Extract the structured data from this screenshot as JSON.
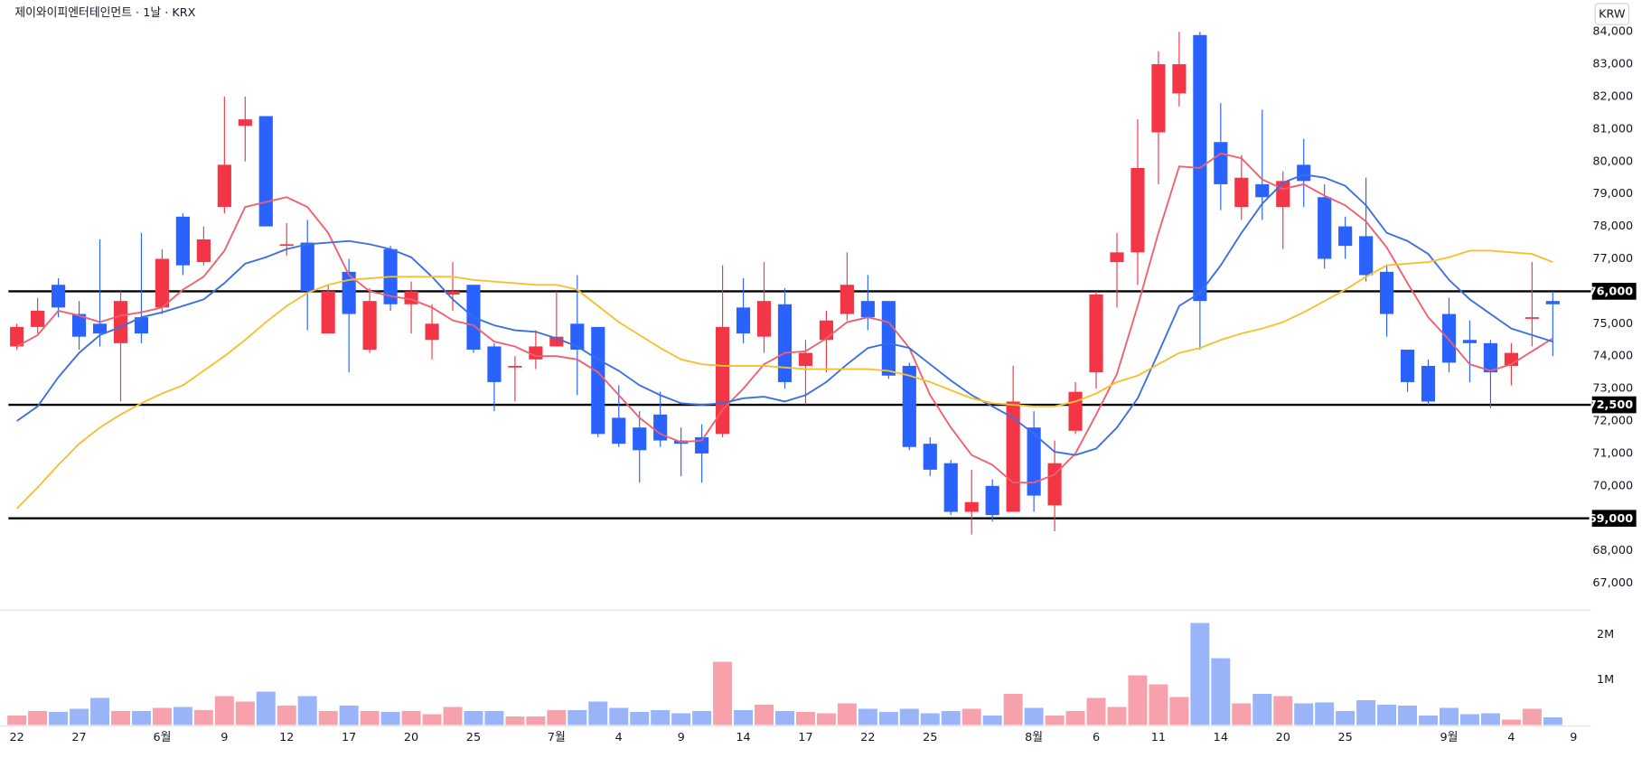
{
  "chart_data": {
    "type": "candlestick",
    "title": "제이와이피엔터테인먼트 · 1날 · KRX",
    "currency": "KRW",
    "up_color": "#f23645",
    "down_color": "#2962ff",
    "categories": [
      "22",
      null,
      null,
      "27",
      null,
      null,
      null,
      "6월",
      null,
      null,
      "9",
      null,
      null,
      "12",
      null,
      null,
      "17",
      null,
      null,
      "20",
      null,
      null,
      "25",
      null,
      null,
      null,
      "7월",
      null,
      null,
      "4",
      null,
      null,
      "9",
      null,
      null,
      "14",
      null,
      null,
      "17",
      null,
      null,
      "22",
      null,
      null,
      "25",
      null,
      null,
      null,
      null,
      "8월",
      null,
      null,
      "6",
      null,
      null,
      "11",
      null,
      null,
      "14",
      null,
      null,
      "20",
      null,
      null,
      "25",
      null,
      null,
      null,
      null,
      "9월",
      null,
      null,
      "4",
      null,
      null,
      "9"
    ],
    "open": [
      74300,
      74900,
      76200,
      75300,
      75000,
      74400,
      75200,
      75500,
      78300,
      76900,
      78600,
      81100,
      81400,
      77400,
      77500,
      74700,
      76600,
      74200,
      77300,
      75600,
      74500,
      75900,
      76200,
      74300,
      73650,
      73900,
      74300,
      75000,
      74900,
      72100,
      71800,
      72200,
      71400,
      71500,
      71600,
      75500,
      74600,
      75600,
      73700,
      74500,
      75300,
      75700,
      75700,
      73700,
      71300,
      70700,
      69200,
      70000,
      69200,
      71800,
      69400,
      71700,
      73500,
      76900,
      77200,
      80900,
      82100,
      83900,
      80600,
      78600,
      79300,
      78600,
      79900,
      78900,
      78000,
      77700,
      76600,
      74200,
      73700,
      75300,
      74500,
      74400,
      73700,
      75150,
      75700,
      null
    ],
    "high": [
      75000,
      75800,
      76400,
      75700,
      77600,
      76000,
      77800,
      77300,
      78400,
      78000,
      82000,
      82000,
      81400,
      78100,
      78200,
      76200,
      77000,
      76100,
      77400,
      76300,
      75600,
      76900,
      76200,
      74400,
      74000,
      74800,
      76000,
      76500,
      74900,
      73100,
      72300,
      72900,
      71800,
      71900,
      76800,
      76400,
      76900,
      76100,
      74500,
      75400,
      77200,
      76500,
      75700,
      73800,
      71500,
      70800,
      70500,
      70200,
      73700,
      72300,
      71400,
      73200,
      76000,
      77800,
      81300,
      83400,
      84000,
      84000,
      81800,
      80200,
      81600,
      79700,
      80700,
      79300,
      78300,
      79500,
      76800,
      74200,
      73900,
      75800,
      75100,
      74500,
      74400,
      76900,
      76000,
      null
    ],
    "low": [
      74200,
      74700,
      75200,
      74200,
      74300,
      72600,
      74400,
      75300,
      76500,
      76800,
      78400,
      80000,
      78000,
      77100,
      74800,
      74700,
      73500,
      74100,
      75400,
      74700,
      73900,
      75400,
      74100,
      72300,
      72600,
      73600,
      74300,
      72800,
      71500,
      71200,
      70100,
      71200,
      70300,
      70100,
      71500,
      74400,
      74100,
      73000,
      72500,
      73500,
      75100,
      74800,
      73300,
      71100,
      70300,
      69100,
      68500,
      68900,
      69200,
      69200,
      68600,
      71600,
      73000,
      75500,
      76200,
      79300,
      81700,
      74200,
      78500,
      78200,
      78200,
      77300,
      78600,
      76700,
      77000,
      76300,
      74600,
      72900,
      72500,
      73500,
      73200,
      72400,
      73100,
      74300,
      74000,
      null
    ],
    "close": [
      74900,
      75400,
      75500,
      74600,
      74700,
      75700,
      74700,
      77000,
      76800,
      77600,
      79900,
      81300,
      78000,
      77450,
      76000,
      76000,
      75300,
      75700,
      75600,
      76000,
      75000,
      76000,
      74200,
      73200,
      73700,
      74300,
      74600,
      74200,
      71600,
      71300,
      71100,
      71400,
      71300,
      71000,
      74900,
      74700,
      75700,
      73200,
      74100,
      75100,
      76200,
      75200,
      73400,
      71200,
      70500,
      69200,
      69500,
      69100,
      72600,
      69700,
      70700,
      72900,
      75900,
      77200,
      79800,
      83000,
      83000,
      75700,
      79300,
      79500,
      78900,
      79400,
      79400,
      77000,
      77400,
      76500,
      75300,
      73200,
      72600,
      73800,
      74400,
      73500,
      74100,
      75200,
      75600,
      null
    ],
    "lines": [
      {
        "color": "#f0606d",
        "values": [
          74300,
          74650,
          75400,
          75250,
          75050,
          75250,
          75350,
          75500,
          76050,
          76450,
          77250,
          78600,
          78750,
          78900,
          78600,
          77800,
          76500,
          76000,
          75850,
          75750,
          75500,
          75100,
          74950,
          74450,
          74300,
          74000,
          74000,
          73900,
          73500,
          72800,
          72100,
          71600,
          71350,
          71400,
          72350,
          73000,
          73750,
          74100,
          74150,
          74550,
          75050,
          75200,
          75050,
          74250,
          72800,
          71800,
          70950,
          70650,
          70100,
          70100,
          70350,
          71000,
          72200,
          73450,
          75550,
          77800,
          79850,
          79800,
          80250,
          80100,
          79450,
          79150,
          79300,
          78950,
          78650,
          78150,
          77350,
          76250,
          75200,
          74500,
          73750,
          73550,
          73750,
          74150,
          74550,
          null
        ]
      },
      {
        "color": "#3b6fe0",
        "values": [
          72000,
          72450,
          73350,
          74100,
          74650,
          74900,
          75200,
          75350,
          75550,
          75750,
          76250,
          76850,
          77050,
          77300,
          77450,
          77500,
          77550,
          77450,
          77300,
          77050,
          76450,
          75750,
          75200,
          74950,
          74800,
          74750,
          74550,
          74300,
          73900,
          73550,
          73100,
          72800,
          72550,
          72500,
          72550,
          72700,
          72750,
          72600,
          72800,
          73200,
          73750,
          74250,
          74400,
          74250,
          73750,
          73250,
          72800,
          72450,
          72100,
          71600,
          71050,
          70950,
          71150,
          71800,
          72700,
          74100,
          75550,
          75950,
          76800,
          77800,
          78700,
          79350,
          79600,
          79500,
          79250,
          78650,
          77800,
          77550,
          77150,
          76350,
          75750,
          75300,
          74850,
          74650,
          74450,
          null
        ]
      },
      {
        "color": "#f5c030",
        "values": [
          69300,
          69950,
          70650,
          71300,
          71800,
          72200,
          72550,
          72850,
          73100,
          73550,
          74000,
          74500,
          75050,
          75550,
          75950,
          76200,
          76350,
          76400,
          76450,
          76450,
          76450,
          76450,
          76350,
          76300,
          76250,
          76200,
          76200,
          76050,
          75550,
          75050,
          74650,
          74250,
          73900,
          73750,
          73700,
          73700,
          73700,
          73650,
          73600,
          73600,
          73600,
          73600,
          73550,
          73400,
          73200,
          72950,
          72700,
          72550,
          72500,
          72450,
          72450,
          72600,
          72850,
          73200,
          73400,
          73750,
          74100,
          74250,
          74500,
          74700,
          74850,
          75050,
          75350,
          75700,
          76050,
          76450,
          76800,
          76850,
          76900,
          77050,
          77250,
          77250,
          77200,
          77150,
          76900,
          null
        ]
      }
    ],
    "hlines": [
      {
        "value": 76000,
        "label": "76,000"
      },
      {
        "value": 72500,
        "label": "72,500"
      },
      {
        "value": 69000,
        "label": "69,000"
      }
    ],
    "ylim": [
      66200,
      84970
    ],
    "yticks": [
      {
        "value": 67000,
        "label": "67,000"
      },
      {
        "value": 68000,
        "label": "68,000"
      },
      {
        "value": 69000,
        "label": "69,000"
      },
      {
        "value": 70000,
        "label": "70,000"
      },
      {
        "value": 71000,
        "label": "71,000"
      },
      {
        "value": 72000,
        "label": "72,000"
      },
      {
        "value": 73000,
        "label": "73,000"
      },
      {
        "value": 74000,
        "label": "74,000"
      },
      {
        "value": 75000,
        "label": "75,000"
      },
      {
        "value": 76000,
        "label": "76,000"
      },
      {
        "value": 77000,
        "label": "77,000"
      },
      {
        "value": 78000,
        "label": "78,000"
      },
      {
        "value": 79000,
        "label": "79,000"
      },
      {
        "value": 80000,
        "label": "80,000"
      },
      {
        "value": 81000,
        "label": "81,000"
      },
      {
        "value": 82000,
        "label": "82,000"
      },
      {
        "value": 83000,
        "label": "83,000"
      },
      {
        "value": 84000,
        "label": "84,000"
      }
    ],
    "volume": {
      "up_color": "#f7a1ac",
      "down_color": "#99b4f8",
      "values": [
        210000,
        310000,
        290000,
        360000,
        600000,
        310000,
        310000,
        380000,
        400000,
        330000,
        640000,
        520000,
        740000,
        430000,
        640000,
        310000,
        430000,
        310000,
        290000,
        310000,
        240000,
        400000,
        310000,
        310000,
        190000,
        190000,
        330000,
        330000,
        520000,
        380000,
        290000,
        330000,
        260000,
        310000,
        1400000,
        330000,
        450000,
        310000,
        290000,
        260000,
        480000,
        360000,
        290000,
        360000,
        260000,
        310000,
        360000,
        210000,
        690000,
        380000,
        210000,
        310000,
        600000,
        400000,
        1100000,
        900000,
        620000,
        2260000,
        1480000,
        480000,
        690000,
        640000,
        480000,
        500000,
        310000,
        550000,
        450000,
        430000,
        210000,
        380000,
        240000,
        260000,
        120000,
        360000,
        170000,
        null
      ],
      "ylim": [
        0,
        2520000
      ],
      "yticks": [
        {
          "value": 1000000,
          "label": "1M"
        },
        {
          "value": 2000000,
          "label": "2M"
        }
      ]
    },
    "grid": false
  }
}
